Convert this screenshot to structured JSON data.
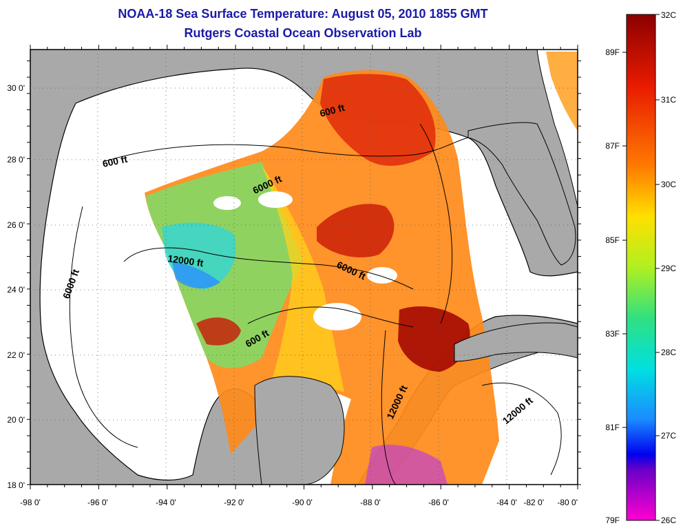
{
  "title_line1": "NOAA-18 Sea Surface Temperature:  August 05, 2010 1855 GMT",
  "title_line2": "Rutgers Coastal Ocean Observation Lab",
  "map": {
    "lon_labels": [
      "-98 0'",
      "-96 0'",
      "-94 0'",
      "-92 0'",
      "-90 0'",
      "-88 0'",
      "-86 0'",
      "-84 0'",
      "-82 0'",
      "-80 0'"
    ],
    "lat_labels": [
      "18 0'",
      "20 0'",
      "22 0'",
      "24 0'",
      "26 0'",
      "28 0'",
      "30 0'"
    ],
    "contour_labels": [
      "600 ft",
      "600 ft",
      "6000 ft",
      "6000 ft",
      "12000 ft",
      "6000 ft",
      "600 ft",
      "12000 ft",
      "12000 ft"
    ],
    "colors": {
      "land": "#a9a9a9",
      "no_data": "#ffffff",
      "border": "#000000"
    }
  },
  "colorbar": {
    "celsius_labels": [
      "32C",
      "31C",
      "30C",
      "29C",
      "28C",
      "27C",
      "26C"
    ],
    "fahrenheit_labels": [
      "89F",
      "87F",
      "85F",
      "83F",
      "81F",
      "79F"
    ],
    "stops": [
      "#8b0000",
      "#e81a00",
      "#ff7a00",
      "#ffe000",
      "#b0f020",
      "#30e080",
      "#00e0e0",
      "#1a8cff",
      "#0000ee",
      "#6a00c8",
      "#ff00d0"
    ]
  }
}
